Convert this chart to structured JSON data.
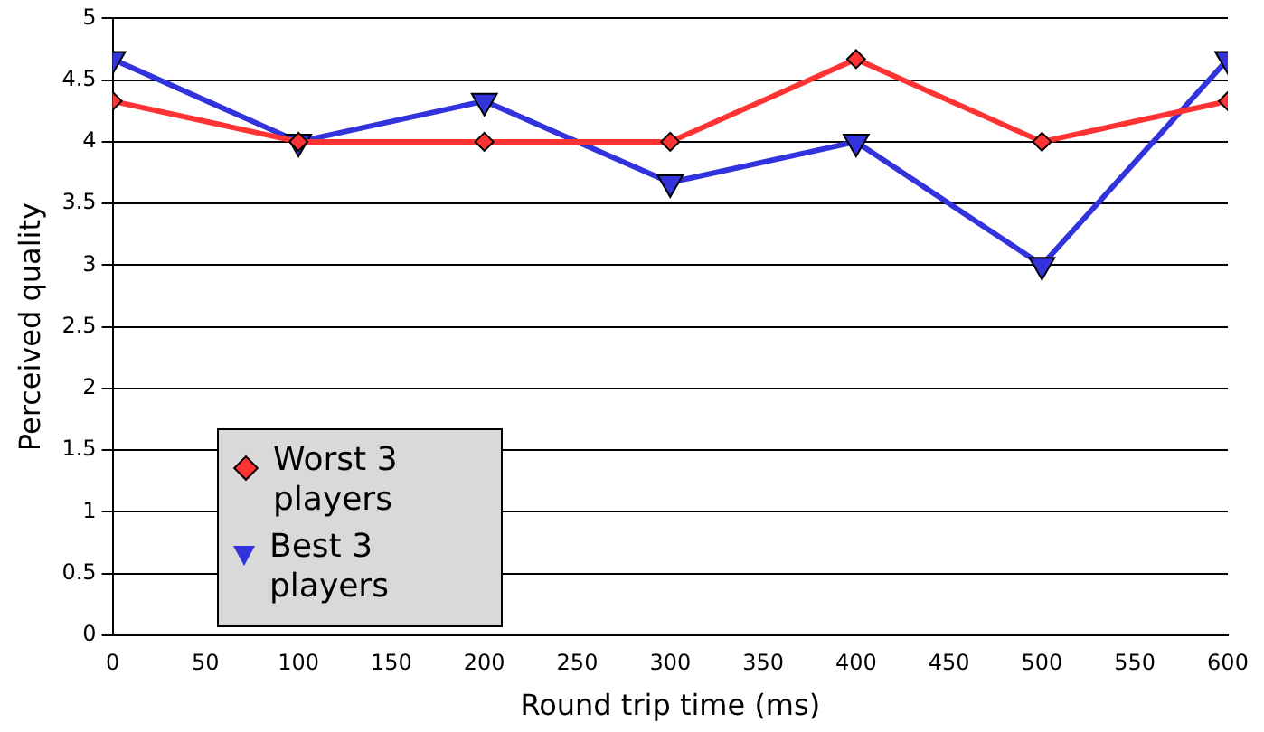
{
  "chart_data": {
    "type": "line",
    "xlabel": "Round trip time (ms)",
    "ylabel": "Perceived quality",
    "x": [
      0,
      100,
      200,
      300,
      400,
      500,
      600
    ],
    "series": [
      {
        "name": "Worst 3 players",
        "color": "#ff3333",
        "marker": "diamond",
        "values": [
          4.33,
          4,
          4,
          4,
          4.67,
          4,
          4.33
        ]
      },
      {
        "name": "Best 3 players",
        "color": "#3333dd",
        "marker": "triangle",
        "values": [
          4.67,
          4,
          4.33,
          3.67,
          4,
          3,
          4.67
        ]
      }
    ],
    "xlim": [
      0,
      600
    ],
    "xticks": [
      0,
      50,
      100,
      150,
      200,
      250,
      300,
      350,
      400,
      450,
      500,
      550,
      600
    ],
    "ylim": [
      0,
      5
    ],
    "yticks": [
      0,
      0.5,
      1,
      1.5,
      2,
      2.5,
      3,
      3.5,
      4,
      4.5,
      5
    ],
    "grid": "y",
    "legend": "bottom left"
  }
}
